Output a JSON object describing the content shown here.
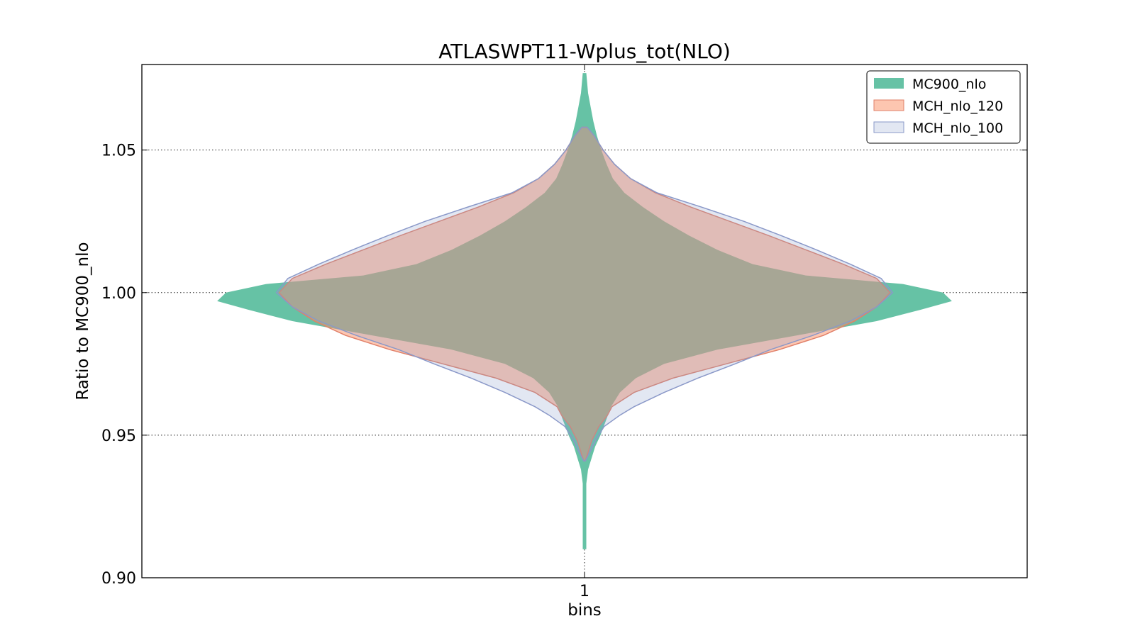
{
  "chart_data": {
    "type": "violin",
    "title": "ATLASWPT11-Wplus_tot(NLO)",
    "xlabel": "bins",
    "ylabel": "Ratio to MC900_nlo",
    "xlim": [
      0.5,
      1.5
    ],
    "ylim": [
      0.9,
      1.08
    ],
    "x_ticks": [
      {
        "value": 1,
        "label": "1"
      }
    ],
    "y_ticks": [
      {
        "value": 0.9,
        "label": "0.90"
      },
      {
        "value": 0.95,
        "label": "0.95"
      },
      {
        "value": 1.0,
        "label": "1.00"
      },
      {
        "value": 1.05,
        "label": "1.05"
      }
    ],
    "grid": true,
    "legend_position": "top-right",
    "series": [
      {
        "name": "MC900_nlo",
        "fill": "#66c2a5",
        "fill_opacity": 1.0,
        "stroke": "none",
        "center": 1,
        "profile": [
          [
            0.91,
            0.002
          ],
          [
            0.925,
            0.002
          ],
          [
            0.933,
            0.002
          ],
          [
            0.938,
            0.004
          ],
          [
            0.942,
            0.008
          ],
          [
            0.946,
            0.012
          ],
          [
            0.95,
            0.018
          ],
          [
            0.955,
            0.024
          ],
          [
            0.96,
            0.03
          ],
          [
            0.965,
            0.04
          ],
          [
            0.97,
            0.058
          ],
          [
            0.975,
            0.09
          ],
          [
            0.98,
            0.15
          ],
          [
            0.985,
            0.24
          ],
          [
            0.99,
            0.33
          ],
          [
            0.994,
            0.38
          ],
          [
            0.997,
            0.415
          ],
          [
            1.0,
            0.405
          ],
          [
            1.003,
            0.36
          ],
          [
            1.006,
            0.25
          ],
          [
            1.01,
            0.19
          ],
          [
            1.015,
            0.15
          ],
          [
            1.02,
            0.118
          ],
          [
            1.025,
            0.09
          ],
          [
            1.03,
            0.066
          ],
          [
            1.035,
            0.045
          ],
          [
            1.04,
            0.032
          ],
          [
            1.045,
            0.025
          ],
          [
            1.05,
            0.019
          ],
          [
            1.055,
            0.014
          ],
          [
            1.06,
            0.01
          ],
          [
            1.065,
            0.007
          ],
          [
            1.07,
            0.004
          ],
          [
            1.077,
            0.002
          ]
        ]
      },
      {
        "name": "MCH_nlo_120",
        "fill": "#fc8d62",
        "fill_opacity": 0.5,
        "stroke": "#e0806a",
        "center": 1,
        "profile": [
          [
            0.941,
            0.001
          ],
          [
            0.944,
            0.004
          ],
          [
            0.948,
            0.008
          ],
          [
            0.953,
            0.016
          ],
          [
            0.957,
            0.026
          ],
          [
            0.96,
            0.031
          ],
          [
            0.965,
            0.056
          ],
          [
            0.97,
            0.1
          ],
          [
            0.975,
            0.16
          ],
          [
            0.98,
            0.22
          ],
          [
            0.985,
            0.27
          ],
          [
            0.99,
            0.305
          ],
          [
            0.995,
            0.33
          ],
          [
            1.0,
            0.345
          ],
          [
            1.005,
            0.33
          ],
          [
            1.01,
            0.292
          ],
          [
            1.015,
            0.25
          ],
          [
            1.02,
            0.208
          ],
          [
            1.025,
            0.164
          ],
          [
            1.03,
            0.12
          ],
          [
            1.035,
            0.08
          ],
          [
            1.04,
            0.052
          ],
          [
            1.045,
            0.034
          ],
          [
            1.05,
            0.021
          ],
          [
            1.055,
            0.011
          ],
          [
            1.058,
            0.003
          ]
        ]
      },
      {
        "name": "MCH_nlo_100",
        "fill": "#8da0cb",
        "fill_opacity": 0.25,
        "stroke": "#8a98c8",
        "center": 1,
        "profile": [
          [
            0.941,
            0.001
          ],
          [
            0.944,
            0.006
          ],
          [
            0.948,
            0.012
          ],
          [
            0.953,
            0.022
          ],
          [
            0.957,
            0.04
          ],
          [
            0.96,
            0.056
          ],
          [
            0.965,
            0.09
          ],
          [
            0.97,
            0.128
          ],
          [
            0.975,
            0.17
          ],
          [
            0.98,
            0.21
          ],
          [
            0.985,
            0.258
          ],
          [
            0.99,
            0.3
          ],
          [
            0.995,
            0.33
          ],
          [
            1.0,
            0.348
          ],
          [
            1.005,
            0.335
          ],
          [
            1.01,
            0.3
          ],
          [
            1.015,
            0.262
          ],
          [
            1.02,
            0.222
          ],
          [
            1.025,
            0.18
          ],
          [
            1.03,
            0.132
          ],
          [
            1.035,
            0.082
          ],
          [
            1.04,
            0.052
          ],
          [
            1.045,
            0.034
          ],
          [
            1.05,
            0.021
          ],
          [
            1.055,
            0.011
          ],
          [
            1.058,
            0.003
          ]
        ]
      }
    ]
  }
}
